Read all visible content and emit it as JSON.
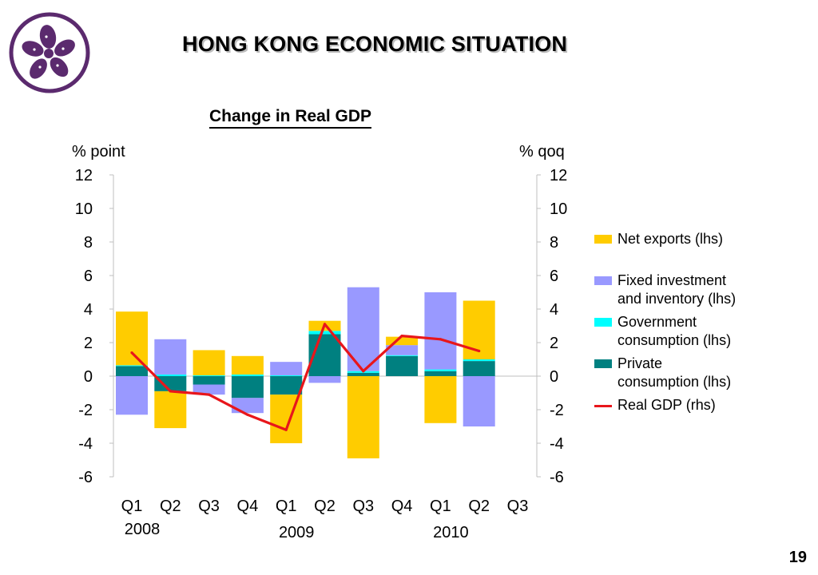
{
  "slide": {
    "title": "HONG KONG ECONOMIC SITUATION",
    "page_number": "19",
    "logo": "bauhinia-flower-logo"
  },
  "colors": {
    "net_exports": "#ffcc00",
    "fixed_investment": "#9999ff",
    "government": "#00ffff",
    "private": "#008080",
    "real_gdp": "#e8161b",
    "logo": "#5b2a6e"
  },
  "chart_data": {
    "type": "bar",
    "title": "Change in Real GDP",
    "ylabel_left": "% point",
    "ylabel_right": "% qoq",
    "ylim": [
      -6,
      12
    ],
    "yticks": [
      12,
      10,
      8,
      6,
      4,
      2,
      0,
      -2,
      -4,
      -6
    ],
    "categories": [
      "Q1",
      "Q2",
      "Q3",
      "Q4",
      "Q1",
      "Q2",
      "Q3",
      "Q4",
      "Q1",
      "Q2",
      "Q3"
    ],
    "year_labels": [
      {
        "label": "2008",
        "category_index": 0
      },
      {
        "label": "2009",
        "category_index": 4
      },
      {
        "label": "2010",
        "category_index": 8
      }
    ],
    "stacked": true,
    "series": [
      {
        "name": "Private consumption (lhs)",
        "key": "private",
        "axis": "left",
        "values": [
          0.6,
          -0.9,
          -0.5,
          -1.3,
          -1.1,
          2.5,
          0.2,
          1.2,
          0.3,
          0.9,
          null
        ]
      },
      {
        "name": "Government consumption (lhs)",
        "key": "government",
        "axis": "left",
        "values": [
          0.05,
          0.1,
          0.05,
          0.1,
          0.05,
          0.2,
          0.1,
          0.05,
          0.1,
          0.1,
          null
        ]
      },
      {
        "name": "Fixed investment and inventory (lhs)",
        "key": "fixed_investment",
        "axis": "left",
        "values": [
          -2.3,
          2.1,
          -0.6,
          -0.9,
          0.8,
          -0.4,
          5.0,
          0.6,
          4.6,
          -3.0,
          null
        ]
      },
      {
        "name": "Net exports (lhs)",
        "key": "net_exports",
        "axis": "left",
        "values": [
          3.2,
          -2.2,
          1.5,
          1.1,
          -2.9,
          0.6,
          -4.9,
          0.5,
          -2.8,
          3.5,
          null
        ]
      },
      {
        "name": "Real GDP (rhs)",
        "key": "real_gdp",
        "axis": "right",
        "type": "line",
        "values": [
          1.4,
          -0.9,
          -1.1,
          -2.3,
          -3.2,
          3.1,
          0.3,
          2.4,
          2.2,
          1.5,
          null
        ]
      }
    ],
    "legend_order": [
      "net_exports",
      "fixed_investment",
      "government",
      "private",
      "real_gdp"
    ],
    "legend": {
      "net_exports": "Net exports (lhs)",
      "fixed_investment": "Fixed investment\nand inventory (lhs)",
      "government": "Government\nconsumption (lhs)",
      "private": "Private\nconsumption (lhs)",
      "real_gdp": "Real GDP (rhs)"
    },
    "legend_position": "right",
    "grid": false
  }
}
